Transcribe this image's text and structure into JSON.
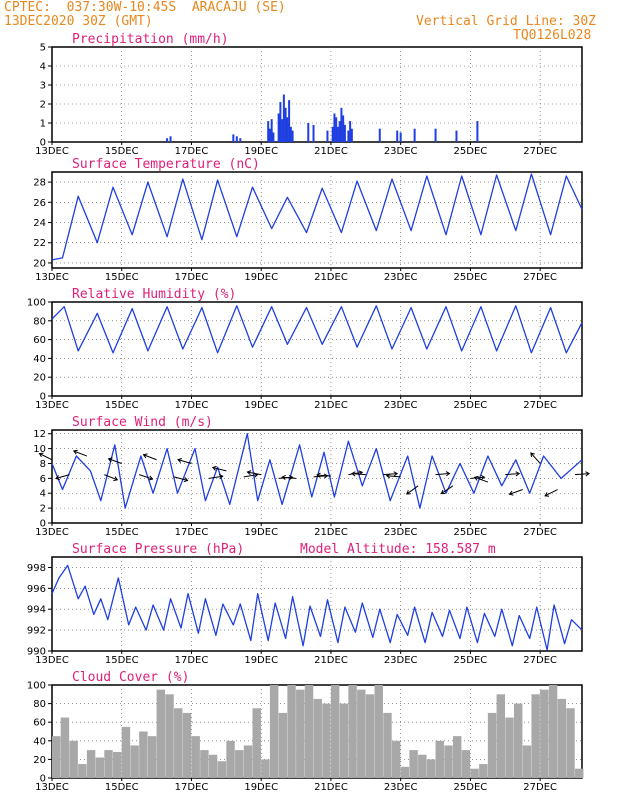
{
  "header": {
    "line1": "CPTEC:  037:30W-10:45S  ARACAJU (SE)",
    "line2": "13DEC2020 30Z (GMT)",
    "grid_note": "Vertical Grid Line: 30Z",
    "code": "TQ0126L028"
  },
  "colors": {
    "header": "#e8871e",
    "title": "#e0207a",
    "series": "#1f3fe0",
    "cloud": "#a8a8a8"
  },
  "x_labels": [
    "13DEC",
    "15DEC",
    "17DEC",
    "19DEC",
    "21DEC",
    "23DEC",
    "25DEC",
    "27DEC"
  ],
  "x_label_days": [
    0,
    2,
    4,
    6,
    8,
    10,
    12,
    14
  ],
  "x_range_days": [
    0,
    15.2
  ],
  "chart_data": [
    {
      "type": "bar",
      "name": "precip",
      "title": "Precipitation (mm/h)",
      "ylim": [
        0,
        5
      ],
      "yticks": [
        0,
        1,
        2,
        3,
        4,
        5
      ],
      "grid": true,
      "x": [
        3.3,
        3.4,
        5.2,
        5.3,
        5.4,
        6.2,
        6.25,
        6.3,
        6.35,
        6.5,
        6.55,
        6.6,
        6.65,
        6.7,
        6.75,
        6.8,
        6.85,
        6.9,
        7.35,
        7.5,
        7.9,
        8.05,
        8.1,
        8.15,
        8.2,
        8.25,
        8.3,
        8.35,
        8.4,
        8.5,
        8.55,
        8.6,
        9.4,
        9.9,
        10.0,
        10.4,
        11.0,
        11.6,
        12.2
      ],
      "values": [
        0.2,
        0.3,
        0.4,
        0.3,
        0.2,
        1.1,
        0.7,
        1.2,
        0.5,
        1.5,
        2.1,
        1.2,
        2.5,
        1.8,
        1.3,
        2.2,
        0.8,
        0.6,
        1.0,
        0.9,
        0.6,
        0.8,
        1.5,
        1.3,
        0.8,
        1.1,
        1.8,
        1.4,
        0.9,
        0.6,
        1.1,
        0.7,
        0.7,
        0.6,
        0.5,
        0.7,
        0.7,
        0.6,
        1.1
      ]
    },
    {
      "type": "line",
      "name": "temp",
      "title": "Surface Temperature (nC)",
      "ylim": [
        19.5,
        29
      ],
      "yticks": [
        20,
        22,
        24,
        26,
        28
      ],
      "grid": true,
      "x": [
        0,
        0.3,
        0.75,
        1.3,
        1.75,
        2.3,
        2.75,
        3.3,
        3.75,
        4.3,
        4.75,
        5.3,
        5.75,
        6.3,
        6.75,
        7.3,
        7.75,
        8.3,
        8.75,
        9.3,
        9.75,
        10.3,
        10.75,
        11.3,
        11.75,
        12.3,
        12.75,
        13.3,
        13.75,
        14.3,
        14.75,
        15.2
      ],
      "values": [
        20.3,
        20.5,
        26.6,
        22.0,
        27.5,
        22.8,
        28.0,
        22.6,
        28.3,
        22.3,
        28.2,
        22.6,
        27.5,
        23.4,
        26.5,
        23.0,
        27.4,
        23.0,
        28.1,
        23.2,
        28.3,
        23.2,
        28.6,
        22.8,
        28.6,
        22.8,
        28.7,
        23.2,
        28.8,
        22.8,
        28.6,
        25.3
      ]
    },
    {
      "type": "line",
      "name": "rh",
      "title": "Relative Humidity (%)",
      "ylim": [
        0,
        100
      ],
      "yticks": [
        0,
        20,
        40,
        60,
        80,
        100
      ],
      "grid": true,
      "x": [
        0,
        0.35,
        0.75,
        1.3,
        1.75,
        2.3,
        2.75,
        3.3,
        3.75,
        4.3,
        4.75,
        5.3,
        5.75,
        6.3,
        6.75,
        7.3,
        7.75,
        8.3,
        8.75,
        9.3,
        9.75,
        10.3,
        10.75,
        11.3,
        11.75,
        12.3,
        12.75,
        13.3,
        13.75,
        14.3,
        14.75,
        15.2
      ],
      "values": [
        82,
        95,
        48,
        88,
        46,
        93,
        48,
        95,
        50,
        94,
        46,
        96,
        52,
        95,
        55,
        94,
        55,
        95,
        52,
        96,
        50,
        94,
        50,
        95,
        48,
        95,
        48,
        96,
        46,
        94,
        46,
        78
      ]
    },
    {
      "type": "line",
      "name": "wind",
      "title": "Surface Wind (m/s)",
      "ylim": [
        0,
        12.5
      ],
      "yticks": [
        0,
        2,
        4,
        6,
        8,
        10,
        12
      ],
      "grid": true,
      "x": [
        0,
        0.3,
        0.7,
        1.1,
        1.4,
        1.8,
        2.1,
        2.55,
        2.9,
        3.3,
        3.6,
        4.1,
        4.4,
        4.75,
        5.1,
        5.6,
        5.9,
        6.25,
        6.6,
        7.1,
        7.45,
        7.8,
        8.1,
        8.5,
        8.9,
        9.3,
        9.7,
        10.2,
        10.55,
        10.9,
        11.3,
        11.7,
        12.1,
        12.5,
        12.9,
        13.3,
        13.7,
        14.1,
        14.6,
        15.2
      ],
      "values": [
        8,
        4.5,
        9,
        7,
        3,
        10.5,
        2,
        9,
        4,
        10,
        4,
        10,
        3,
        7.5,
        2.5,
        12,
        3,
        8.5,
        2.5,
        10.5,
        3.5,
        9.5,
        3.5,
        11,
        5,
        10,
        3,
        9,
        2,
        9,
        4,
        8,
        4,
        9,
        5,
        8.5,
        4,
        9,
        6,
        8.5
      ],
      "arrows": {
        "x": [
          0,
          0.5,
          1.0,
          1.5,
          2.0,
          2.5,
          3.0,
          3.5,
          4.0,
          4.5,
          5.0,
          5.5,
          6.0,
          6.5,
          7.0,
          7.5,
          8.0,
          8.5,
          9.0,
          9.5,
          10.0,
          10.5,
          11.0,
          11.5,
          12.0,
          12.5,
          13.0,
          13.5,
          14.0,
          14.5,
          15.0
        ],
        "speed": [
          8.5,
          6.5,
          9,
          6.5,
          8,
          6.5,
          8.5,
          6.2,
          8,
          6,
          7,
          6.2,
          6.5,
          6,
          6,
          6.2,
          6.3,
          6.5,
          6.5,
          6.5,
          6.2,
          5,
          6.5,
          5,
          6,
          5.5,
          6.5,
          4.5,
          8,
          4.5,
          6.5
        ],
        "dir_u": [
          -1.6,
          -1.4,
          -1.3,
          1.5,
          -1.4,
          1.5,
          -1.3,
          1.5,
          -1.4,
          1.3,
          -1.2,
          1.2,
          -1.1,
          1.3,
          -1.2,
          1.2,
          -1.2,
          1.2,
          -1.3,
          1.3,
          -1.2,
          -1.1,
          1.2,
          -1.2,
          1.2,
          -1.1,
          1.3,
          -1.4,
          -0.8,
          -1.2,
          1.4
        ],
        "dir_v": [
          0.8,
          -0.4,
          0.5,
          -0.6,
          0.5,
          -0.5,
          0.5,
          -0.4,
          0.4,
          0.2,
          0.3,
          0.2,
          0.2,
          0.1,
          0.1,
          0.1,
          0.1,
          0.2,
          0.1,
          0.1,
          0.1,
          -0.8,
          0.1,
          -0.8,
          0.1,
          0.4,
          0.1,
          -0.5,
          0.9,
          -0.6,
          0.1
        ]
      }
    },
    {
      "type": "line",
      "name": "pres",
      "title": "Surface Pressure (hPa)",
      "extra": "Model Altitude: 158.587 m",
      "ylim": [
        990,
        999
      ],
      "yticks": [
        990,
        992,
        994,
        996,
        998
      ],
      "grid": true,
      "x": [
        0,
        0.2,
        0.45,
        0.75,
        0.95,
        1.2,
        1.4,
        1.6,
        1.9,
        2.2,
        2.4,
        2.7,
        2.9,
        3.2,
        3.4,
        3.7,
        3.9,
        4.2,
        4.4,
        4.7,
        4.9,
        5.2,
        5.4,
        5.7,
        5.9,
        6.2,
        6.4,
        6.7,
        6.9,
        7.2,
        7.4,
        7.7,
        7.9,
        8.2,
        8.4,
        8.7,
        8.9,
        9.2,
        9.4,
        9.7,
        9.9,
        10.2,
        10.4,
        10.7,
        10.9,
        11.2,
        11.4,
        11.7,
        11.9,
        12.2,
        12.4,
        12.7,
        12.9,
        13.2,
        13.4,
        13.7,
        13.9,
        14.2,
        14.4,
        14.7,
        14.9,
        15.2
      ],
      "values": [
        995.5,
        997,
        998.2,
        995,
        996.2,
        993.5,
        995,
        993,
        997,
        992.5,
        994.2,
        992,
        994.4,
        992,
        995,
        992.2,
        995.5,
        991.7,
        995,
        991.5,
        994.5,
        992.5,
        994.5,
        991,
        995.5,
        991,
        994.6,
        991.2,
        995.2,
        990.5,
        994.3,
        991.4,
        994.9,
        990.8,
        994.2,
        991.8,
        994.6,
        991.3,
        994,
        990.8,
        993.5,
        991.5,
        994.2,
        990.8,
        993.7,
        991.4,
        993.9,
        991.2,
        994.2,
        990.8,
        993.6,
        991.4,
        994.0,
        990.5,
        993.4,
        991.2,
        994.2,
        990.1,
        994.4,
        990.7,
        993.0,
        992.0
      ]
    },
    {
      "type": "bar",
      "name": "cloud",
      "title": "Cloud Cover (%)",
      "ylim": [
        0,
        100
      ],
      "yticks": [
        0,
        20,
        40,
        60,
        80,
        100
      ],
      "grid": true,
      "x": [
        0,
        0.25,
        0.5,
        0.75,
        1.0,
        1.25,
        1.5,
        1.75,
        2.0,
        2.25,
        2.5,
        2.75,
        3.0,
        3.25,
        3.5,
        3.75,
        4.0,
        4.25,
        4.5,
        4.75,
        5.0,
        5.25,
        5.5,
        5.75,
        6.0,
        6.25,
        6.5,
        6.75,
        7.0,
        7.25,
        7.5,
        7.75,
        8.0,
        8.25,
        8.5,
        8.75,
        9.0,
        9.25,
        9.5,
        9.75,
        10.0,
        10.25,
        10.5,
        10.75,
        11.0,
        11.25,
        11.5,
        11.75,
        12.0,
        12.25,
        12.5,
        12.75,
        13.0,
        13.25,
        13.5,
        13.75,
        14.0,
        14.25,
        14.5,
        14.75,
        15.0
      ],
      "values": [
        45,
        65,
        40,
        15,
        30,
        22,
        30,
        28,
        55,
        35,
        50,
        45,
        95,
        90,
        75,
        70,
        45,
        30,
        25,
        18,
        40,
        30,
        35,
        75,
        20,
        100,
        70,
        100,
        95,
        100,
        85,
        80,
        100,
        80,
        100,
        95,
        90,
        100,
        70,
        40,
        12,
        30,
        25,
        20,
        40,
        35,
        45,
        30,
        10,
        15,
        70,
        90,
        65,
        80,
        35,
        90,
        95,
        100,
        85,
        75,
        10
      ]
    }
  ]
}
